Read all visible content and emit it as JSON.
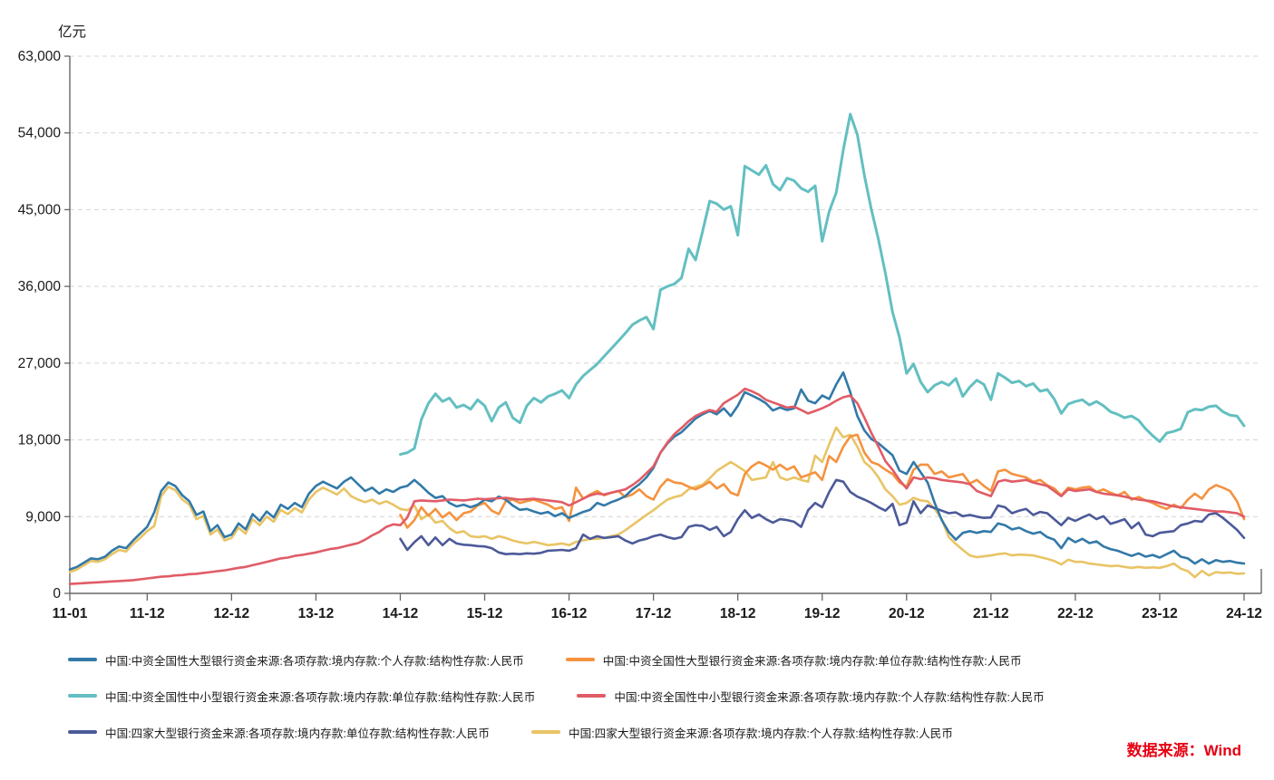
{
  "chart": {
    "unit_label": "亿元",
    "source_label": "数据来源：Wind",
    "source_color": "#e60012",
    "axis_color": "#666666",
    "grid_color": "#d4d4d4",
    "tick_label_color": "#1a1a1a",
    "y_axis": {
      "min": 0,
      "max": 63000,
      "step": 9000,
      "tick_labels": [
        "0",
        "9,000",
        "18,000",
        "27,000",
        "36,000",
        "45,000",
        "54,000",
        "63,000"
      ]
    },
    "x_axis": {
      "tick_labels": [
        "11-01",
        "11-12",
        "12-12",
        "13-12",
        "14-12",
        "15-12",
        "16-12",
        "17-12",
        "18-12",
        "19-12",
        "20-12",
        "21-12",
        "22-12",
        "23-12",
        "24-12"
      ],
      "tick_month_indices": [
        0,
        11,
        23,
        35,
        47,
        59,
        71,
        83,
        95,
        107,
        119,
        131,
        143,
        155,
        167
      ]
    }
  },
  "chart_data": {
    "type": "line",
    "title": "",
    "ylabel": "亿元",
    "xlabel": "",
    "ylim": [
      0,
      63000
    ],
    "grid": "dashed-horizontal",
    "legend_position": "bottom",
    "x_start": "2011-01",
    "x_end": "2024-12",
    "x_frequency": "monthly",
    "series": [
      {
        "name": "中国:中资全国性大型银行资金来源:各项存款:境内存款:个人存款:结构性存款:人民币",
        "color": "#3279a8",
        "values": [
          2800,
          3100,
          3600,
          4100,
          4000,
          4300,
          5000,
          5500,
          5300,
          6200,
          7000,
          7800,
          9500,
          12000,
          13000,
          12600,
          11500,
          10800,
          9200,
          9600,
          7300,
          8000,
          6600,
          6900,
          8200,
          7500,
          9300,
          8500,
          9600,
          8900,
          10400,
          9900,
          10600,
          10100,
          11700,
          12600,
          13100,
          12700,
          12300,
          13100,
          13600,
          12800,
          12000,
          12400,
          11700,
          12200,
          11900,
          12400,
          12600,
          13300,
          12600,
          11800,
          11200,
          11400,
          10600,
          10200,
          10400,
          10100,
          10400,
          11000,
          10800,
          11350,
          11000,
          10300,
          9800,
          9900,
          9600,
          9350,
          9550,
          9050,
          9400,
          8850,
          9200,
          9550,
          9800,
          10600,
          10300,
          10700,
          11000,
          11400,
          12200,
          12800,
          13600,
          14700,
          16500,
          17600,
          18400,
          18900,
          19700,
          20500,
          21000,
          21400,
          21000,
          21700,
          20800,
          22000,
          23600,
          23200,
          22800,
          22300,
          21450,
          21800,
          21500,
          21700,
          23900,
          22600,
          22300,
          23200,
          22800,
          24500,
          25900,
          23600,
          20800,
          19100,
          18100,
          17600,
          16900,
          16200,
          14400,
          14000,
          15400,
          14200,
          13000,
          10600,
          8600,
          7200,
          6300,
          7100,
          7300,
          7100,
          7300,
          7200,
          8200,
          8000,
          7500,
          7700,
          7300,
          7000,
          7200,
          6600,
          6300,
          5300,
          6500,
          6000,
          6400,
          5900,
          6100,
          5500,
          5200,
          5000,
          4700,
          4400,
          4700,
          4300,
          4500,
          4200,
          4600,
          5000,
          4300,
          4100,
          3500,
          4000,
          3500,
          3900,
          3700,
          3800,
          3600,
          3500
        ]
      },
      {
        "name": "中国:中资全国性大型银行资金来源:各项存款:境内存款:单位存款:结构性存款:人民币",
        "color": "#f5923e",
        "values": [
          null,
          null,
          null,
          null,
          null,
          null,
          null,
          null,
          null,
          null,
          null,
          null,
          null,
          null,
          null,
          null,
          null,
          null,
          null,
          null,
          null,
          null,
          null,
          null,
          null,
          null,
          null,
          null,
          null,
          null,
          null,
          null,
          null,
          null,
          null,
          null,
          null,
          null,
          null,
          null,
          null,
          null,
          null,
          null,
          null,
          null,
          null,
          9200,
          7700,
          8600,
          10100,
          9100,
          9900,
          8900,
          9500,
          8600,
          9400,
          9600,
          10300,
          10600,
          9700,
          9300,
          10800,
          11000,
          10600,
          10800,
          11000,
          10700,
          10400,
          9900,
          10100,
          8500,
          12400,
          11100,
          11600,
          12000,
          11500,
          11800,
          12000,
          11300,
          11600,
          12200,
          11400,
          11000,
          12500,
          13400,
          13000,
          12900,
          12500,
          12200,
          12600,
          13100,
          12300,
          12800,
          11800,
          11500,
          14000,
          14900,
          15400,
          15000,
          14500,
          15100,
          14500,
          14900,
          13600,
          13900,
          14200,
          13300,
          16100,
          15400,
          17200,
          18400,
          18600,
          16500,
          15400,
          15100,
          14500,
          14000,
          13000,
          12500,
          14500,
          15100,
          15100,
          14000,
          14300,
          13600,
          13800,
          14000,
          12900,
          13300,
          12600,
          12000,
          14300,
          14500,
          14000,
          13800,
          13600,
          13100,
          13300,
          12700,
          12300,
          11500,
          12400,
          12200,
          12400,
          12500,
          11900,
          12200,
          11800,
          11500,
          11900,
          11000,
          11300,
          10900,
          10600,
          10200,
          9900,
          10400,
          10000,
          11000,
          11700,
          11100,
          12200,
          12700,
          12400,
          12000,
          10800,
          8700
        ]
      },
      {
        "name": "中国:中资全国性中小型银行资金来源:各项存款:境内存款:单位存款:结构性存款:人民币",
        "color": "#63bfc1",
        "values": [
          null,
          null,
          null,
          null,
          null,
          null,
          null,
          null,
          null,
          null,
          null,
          null,
          null,
          null,
          null,
          null,
          null,
          null,
          null,
          null,
          null,
          null,
          null,
          null,
          null,
          null,
          null,
          null,
          null,
          null,
          null,
          null,
          null,
          null,
          null,
          null,
          null,
          null,
          null,
          null,
          null,
          null,
          null,
          null,
          null,
          null,
          null,
          16300,
          16500,
          17000,
          20400,
          22300,
          23400,
          22500,
          22900,
          21800,
          22100,
          21600,
          22700,
          22000,
          20200,
          21800,
          22400,
          20600,
          20000,
          22000,
          22900,
          22400,
          23100,
          23400,
          23800,
          22900,
          24500,
          25500,
          26200,
          26900,
          27800,
          28700,
          29600,
          30500,
          31500,
          32000,
          32400,
          31000,
          35600,
          36000,
          36300,
          37000,
          40400,
          39100,
          42500,
          46000,
          45700,
          45000,
          45400,
          42000,
          50100,
          49600,
          49100,
          50200,
          48000,
          47300,
          48700,
          48400,
          47500,
          47100,
          47800,
          41300,
          44800,
          47000,
          52000,
          56200,
          53800,
          49000,
          45000,
          41500,
          37500,
          33000,
          30000,
          25800,
          26900,
          24800,
          23600,
          24400,
          24800,
          24400,
          25200,
          23100,
          24200,
          25000,
          24500,
          22700,
          25800,
          25300,
          24700,
          24900,
          24300,
          24600,
          23700,
          23900,
          22800,
          21100,
          22200,
          22500,
          22700,
          22100,
          22500,
          22000,
          21300,
          21000,
          20600,
          20800,
          20300,
          19300,
          18500,
          17800,
          18800,
          19000,
          19300,
          21250,
          21600,
          21500,
          21900,
          22000,
          21300,
          20900,
          20800,
          19650
        ]
      },
      {
        "name": "中国:中资全国性中小型银行资金来源:各项存款:境内存款:个人存款:结构性存款:人民币",
        "color": "#e05c66",
        "values": [
          1100,
          1150,
          1200,
          1250,
          1300,
          1350,
          1400,
          1450,
          1500,
          1550,
          1650,
          1750,
          1850,
          1950,
          2000,
          2100,
          2150,
          2250,
          2300,
          2400,
          2500,
          2600,
          2700,
          2850,
          3000,
          3100,
          3300,
          3500,
          3700,
          3900,
          4100,
          4200,
          4400,
          4500,
          4650,
          4800,
          5000,
          5200,
          5300,
          5500,
          5700,
          5900,
          6300,
          6800,
          7200,
          7800,
          8100,
          8000,
          8900,
          10800,
          10900,
          10850,
          10800,
          10900,
          11000,
          10950,
          10900,
          11000,
          11100,
          11050,
          11100,
          11150,
          11200,
          11100,
          11000,
          11050,
          11100,
          11000,
          10900,
          10800,
          10700,
          10300,
          10700,
          11100,
          11500,
          11700,
          11600,
          11800,
          12000,
          12200,
          12700,
          13300,
          14100,
          14900,
          16500,
          17700,
          18700,
          19400,
          20200,
          20800,
          21200,
          21500,
          21300,
          22300,
          22800,
          23300,
          24000,
          23700,
          23300,
          22700,
          22400,
          22100,
          21800,
          21900,
          21500,
          21100,
          21400,
          21700,
          22100,
          22600,
          23000,
          23200,
          22300,
          20600,
          18800,
          17200,
          15500,
          14500,
          13300,
          12300,
          13600,
          13400,
          13600,
          13500,
          13300,
          13200,
          13100,
          13000,
          12800,
          12000,
          11700,
          11400,
          13100,
          13300,
          13100,
          13200,
          13300,
          13000,
          12800,
          12600,
          12000,
          11400,
          12200,
          12000,
          12100,
          12200,
          11900,
          11700,
          11600,
          11500,
          11350,
          11150,
          11000,
          10900,
          10800,
          10600,
          10400,
          10200,
          10100,
          10000,
          9900,
          9800,
          9700,
          9600,
          9600,
          9500,
          9400,
          9000
        ]
      },
      {
        "name": "中国:四家大型银行资金来源:各项存款:境内存款:单位存款:结构性存款:人民币",
        "color": "#4c5a99",
        "values": [
          null,
          null,
          null,
          null,
          null,
          null,
          null,
          null,
          null,
          null,
          null,
          null,
          null,
          null,
          null,
          null,
          null,
          null,
          null,
          null,
          null,
          null,
          null,
          null,
          null,
          null,
          null,
          null,
          null,
          null,
          null,
          null,
          null,
          null,
          null,
          null,
          null,
          null,
          null,
          null,
          null,
          null,
          null,
          null,
          null,
          null,
          null,
          6400,
          5100,
          6000,
          6700,
          5650,
          6550,
          5650,
          6400,
          5850,
          5700,
          5650,
          5550,
          5500,
          5300,
          4800,
          4600,
          4650,
          4600,
          4700,
          4650,
          4750,
          5000,
          5050,
          5100,
          5000,
          5300,
          6900,
          6400,
          6700,
          6500,
          6600,
          6700,
          6200,
          5850,
          6200,
          6400,
          6700,
          6900,
          6600,
          6400,
          6600,
          7800,
          8000,
          7900,
          7450,
          7800,
          6700,
          7200,
          8700,
          9750,
          8850,
          9250,
          8700,
          8300,
          8700,
          8600,
          8400,
          7800,
          9750,
          10600,
          10100,
          11900,
          13300,
          13100,
          11900,
          11350,
          11000,
          10600,
          10100,
          9700,
          10500,
          8000,
          8300,
          10800,
          9400,
          10300,
          10000,
          9700,
          9400,
          9500,
          9050,
          9200,
          9000,
          8850,
          8900,
          10300,
          10100,
          9400,
          9700,
          9900,
          9200,
          9550,
          9400,
          8700,
          8000,
          8850,
          8500,
          8900,
          9250,
          8700,
          9050,
          8150,
          8400,
          8700,
          7650,
          8300,
          6900,
          6700,
          7100,
          7200,
          7300,
          8000,
          8200,
          8500,
          8400,
          9250,
          9400,
          8850,
          8150,
          7450,
          6500
        ]
      },
      {
        "name": "中国:四家大型银行资金来源:各项存款:境内存款:个人存款:结构性存款:人民币",
        "color": "#e9c465",
        "values": [
          2500,
          2800,
          3300,
          3800,
          3700,
          4000,
          4600,
          5100,
          4900,
          5800,
          6500,
          7300,
          7900,
          11400,
          12500,
          12100,
          11000,
          10400,
          8700,
          9100,
          6900,
          7500,
          6200,
          6500,
          7700,
          7000,
          8700,
          8000,
          9000,
          8400,
          9800,
          9300,
          10000,
          9500,
          11000,
          11900,
          12400,
          12000,
          11600,
          12300,
          11400,
          11000,
          10700,
          11000,
          10500,
          10800,
          10400,
          9900,
          9750,
          10300,
          8700,
          9250,
          8300,
          8500,
          7650,
          7100,
          7300,
          6700,
          6600,
          6700,
          6400,
          6700,
          6500,
          6200,
          6000,
          5850,
          6050,
          5850,
          5650,
          5750,
          5850,
          5650,
          6050,
          6200,
          6400,
          6400,
          6500,
          6700,
          6900,
          7400,
          8000,
          8600,
          9200,
          9750,
          10400,
          11000,
          11300,
          11500,
          12200,
          12500,
          12750,
          13500,
          14350,
          14900,
          15400,
          14900,
          14350,
          13300,
          13450,
          13600,
          15400,
          13600,
          13300,
          13600,
          13300,
          13100,
          16150,
          15400,
          17500,
          19450,
          18300,
          18600,
          17200,
          15400,
          14700,
          13600,
          12200,
          11400,
          10400,
          10600,
          11200,
          10900,
          10800,
          9900,
          8700,
          6600,
          5800,
          5100,
          4450,
          4250,
          4350,
          4450,
          4600,
          4700,
          4450,
          4550,
          4500,
          4450,
          4250,
          4050,
          3800,
          3400,
          3950,
          3700,
          3700,
          3500,
          3400,
          3300,
          3200,
          3250,
          3100,
          3000,
          3100,
          3000,
          3050,
          3000,
          3200,
          3500,
          2900,
          2600,
          1900,
          2650,
          2100,
          2500,
          2400,
          2450,
          2300,
          2350
        ]
      }
    ]
  }
}
